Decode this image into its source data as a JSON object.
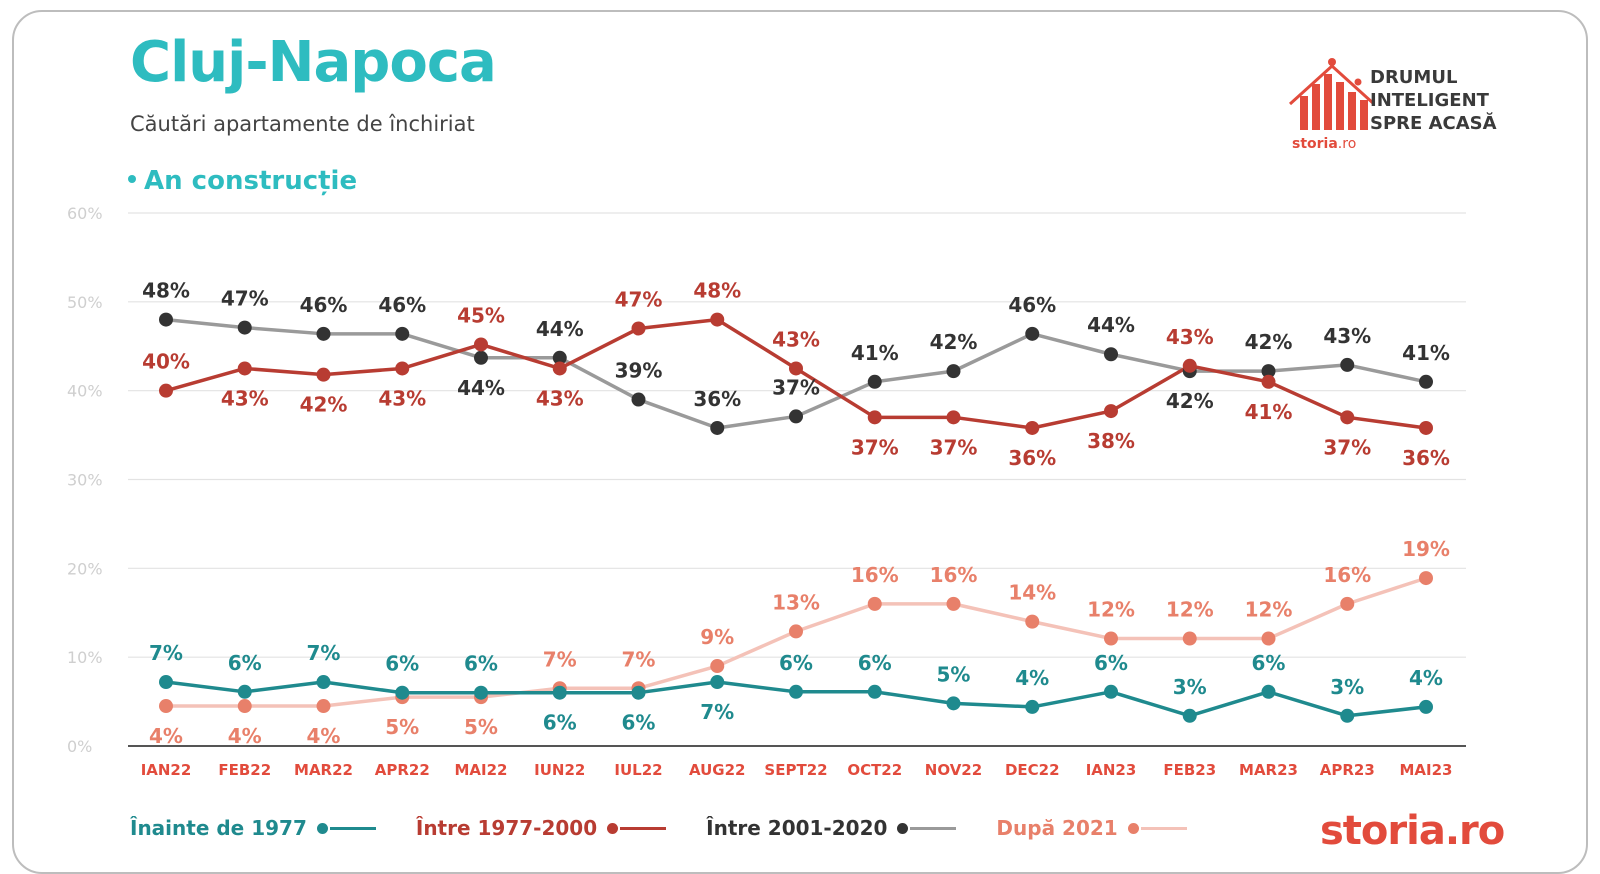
{
  "header": {
    "city": "Cluj-Napoca",
    "subtitle": "Căutări apartamente de închiriat",
    "section": "An construcție"
  },
  "logo": {
    "line1": "DRUMUL",
    "line2": "INTELIGENT",
    "line3": "SPRE ACASĂ",
    "brand": "storia",
    "brand_suffix": ".ro"
  },
  "footer_brand": {
    "name": "storia",
    "suffix": ".ro"
  },
  "colors": {
    "teal": "#1f8a8e",
    "red": "#b83c32",
    "dark": "#333333",
    "grey_line": "#9a9a9a",
    "salmon": "#e8806a",
    "salmon_line": "#f4c2b8",
    "grid": "#e3e3e3",
    "axis_label": "#cfcfcf",
    "month": "#e24b3c"
  },
  "chart_data": {
    "type": "line",
    "categories": [
      "IAN22",
      "FEB22",
      "MAR22",
      "APR22",
      "MAI22",
      "IUN22",
      "IUL22",
      "AUG22",
      "SEPT22",
      "OCT22",
      "NOV22",
      "DEC22",
      "IAN23",
      "FEB23",
      "MAR23",
      "APR23",
      "MAI23"
    ],
    "yticks": [
      "0%",
      "10%",
      "20%",
      "30%",
      "40%",
      "50%",
      "60%"
    ],
    "ylim": [
      0,
      60
    ],
    "series": [
      {
        "name": "Înainte de 1977",
        "color": "#1f8a8e",
        "line": "#1f8a8e",
        "label_color": "#1f8a8e",
        "values": [
          7.2,
          6.1,
          7.2,
          6.0,
          6.0,
          6.0,
          6.0,
          7.2,
          6.1,
          6.1,
          4.8,
          4.4,
          6.1,
          3.4,
          6.1,
          3.4,
          4.4
        ],
        "labels": [
          "7%",
          "6%",
          "7%",
          "6%",
          "6%",
          "6%",
          "6%",
          "7%",
          "6%",
          "6%",
          "5%",
          "4%",
          "6%",
          "3%",
          "6%",
          "3%",
          "4%"
        ],
        "label_pos": [
          "above",
          "above",
          "above",
          "above",
          "above",
          "below",
          "below",
          "below",
          "above",
          "above",
          "above",
          "above",
          "above",
          "above",
          "above",
          "above",
          "above"
        ]
      },
      {
        "name": "Între 1977-2000",
        "color": "#b83c32",
        "line": "#b83c32",
        "label_color": "#b83c32",
        "values": [
          40,
          42.5,
          41.8,
          42.5,
          45.2,
          42.5,
          47,
          48,
          42.5,
          37,
          37,
          35.8,
          37.7,
          42.8,
          41,
          37,
          35.8
        ],
        "labels": [
          "40%",
          "43%",
          "42%",
          "43%",
          "45%",
          "43%",
          "47%",
          "48%",
          "43%",
          "37%",
          "37%",
          "36%",
          "38%",
          "43%",
          "41%",
          "37%",
          "36%"
        ],
        "label_pos": [
          "above",
          "below",
          "below",
          "below",
          "above",
          "below",
          "above",
          "above",
          "above",
          "below",
          "below",
          "below",
          "below",
          "above",
          "below",
          "below",
          "below"
        ]
      },
      {
        "name": "Între 2001-2020",
        "color": "#333333",
        "line": "#9a9a9a",
        "label_color": "#333333",
        "values": [
          48,
          47.1,
          46.4,
          46.4,
          43.7,
          43.7,
          39,
          35.8,
          37.1,
          41,
          42.2,
          46.4,
          44.1,
          42.2,
          42.2,
          42.9,
          41
        ],
        "labels": [
          "48%",
          "47%",
          "46%",
          "46%",
          "44%",
          "44%",
          "39%",
          "36%",
          "37%",
          "41%",
          "42%",
          "46%",
          "44%",
          "42%",
          "42%",
          "43%",
          "41%"
        ],
        "label_pos": [
          "above",
          "above",
          "above",
          "above",
          "below",
          "above",
          "above",
          "above",
          "above",
          "above",
          "above",
          "above",
          "above",
          "below",
          "above",
          "above",
          "above"
        ]
      },
      {
        "name": "După 2021",
        "color": "#e8806a",
        "line": "#f4c2b8",
        "label_color": "#e8806a",
        "values": [
          4.5,
          4.5,
          4.5,
          5.5,
          5.5,
          6.5,
          6.5,
          9,
          12.9,
          16,
          16,
          14,
          12.1,
          12.1,
          12.1,
          16,
          18.9
        ],
        "labels": [
          "4%",
          "4%",
          "4%",
          "5%",
          "5%",
          "7%",
          "7%",
          "9%",
          "13%",
          "16%",
          "16%",
          "14%",
          "12%",
          "12%",
          "12%",
          "16%",
          "19%"
        ],
        "label_pos": [
          "below",
          "below",
          "below",
          "below",
          "below",
          "above",
          "above",
          "above",
          "above",
          "above",
          "above",
          "above",
          "above",
          "above",
          "above",
          "above",
          "above"
        ]
      }
    ]
  }
}
